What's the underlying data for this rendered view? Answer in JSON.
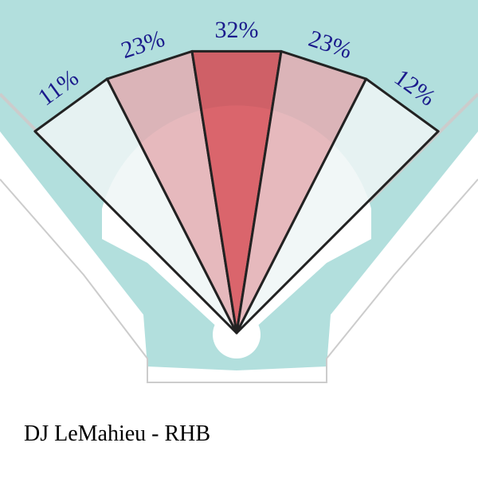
{
  "chart_data": {
    "type": "spray",
    "title": "DJ LeMahieu - RHB",
    "values": [
      11,
      23,
      32,
      23,
      12
    ],
    "value_labels": [
      "11%",
      "23%",
      "32%",
      "23%",
      "12%"
    ],
    "colors": [
      "#eef6f6",
      "#e2adb1",
      "#d34a52",
      "#e2adb1",
      "#eef6f6"
    ],
    "label_color": "#1a1a8c"
  }
}
